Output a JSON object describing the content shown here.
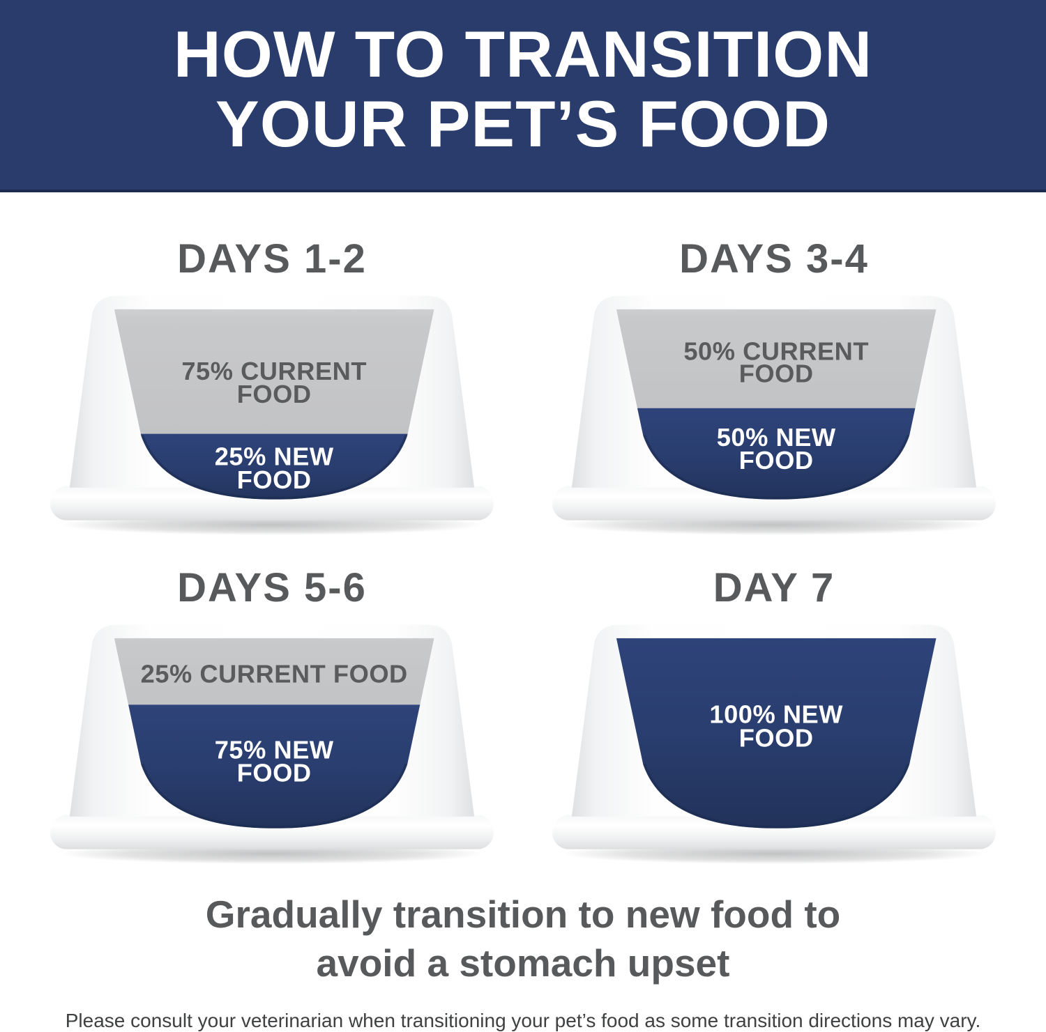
{
  "header": {
    "title_lines": [
      "HOW TO TRANSITION",
      "YOUR PET’S FOOD"
    ]
  },
  "bowls": [
    {
      "title": "DAYS 1-2",
      "current_pct": 75,
      "new_pct": 25,
      "current_label_lines": [
        "75% CURRENT",
        "FOOD"
      ],
      "new_label_lines": [
        "25% NEW",
        "FOOD"
      ]
    },
    {
      "title": "DAYS 3-4",
      "current_pct": 50,
      "new_pct": 50,
      "current_label_lines": [
        "50% CURRENT",
        "FOOD"
      ],
      "new_label_lines": [
        "50% NEW",
        "FOOD"
      ]
    },
    {
      "title": "DAYS 5-6",
      "current_pct": 25,
      "new_pct": 75,
      "current_label_lines": [
        "25% CURRENT FOOD"
      ],
      "new_label_lines": [
        "75% NEW",
        "FOOD"
      ]
    },
    {
      "title": "DAY 7",
      "current_pct": 0,
      "new_pct": 100,
      "current_label_lines": [],
      "new_label_lines": [
        "100% NEW",
        "FOOD"
      ]
    }
  ],
  "footer": {
    "headline_lines": [
      "Gradually transition to new food to",
      "avoid a stomach upset"
    ],
    "disclaimer": "Please consult your veterinarian when transitioning your pet’s food as some transition directions may vary."
  },
  "colors": {
    "header_navy": "#293C6C",
    "new_food_blue": "#2A3E6F",
    "current_food_gray": "#C5C6C8",
    "heading_gray": "#58595B",
    "disclaimer_gray": "#3F4041"
  }
}
